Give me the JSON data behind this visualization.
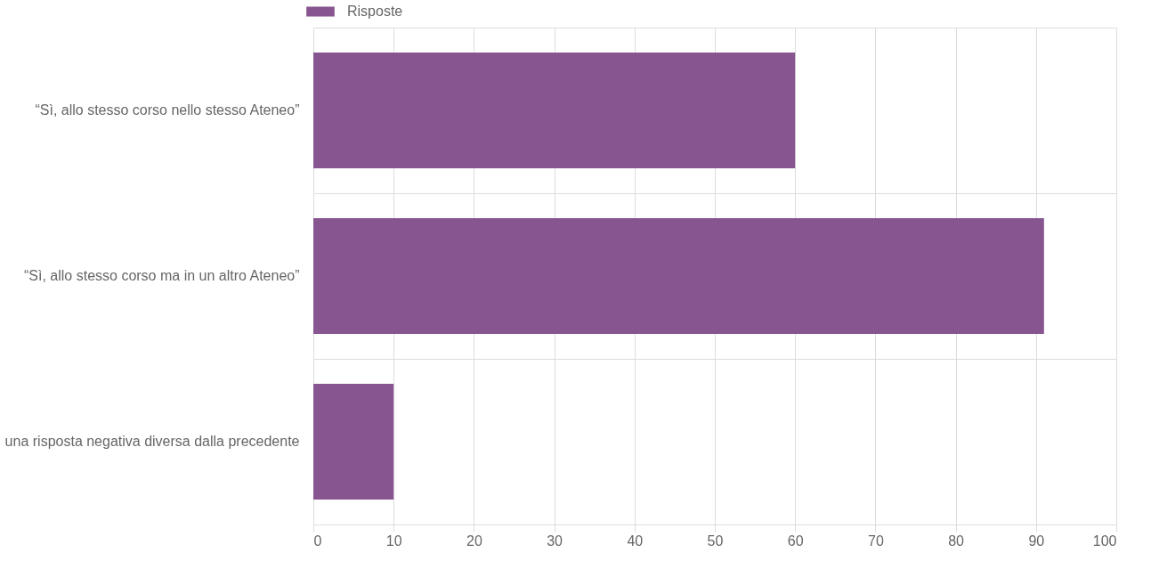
{
  "chart_data": {
    "type": "bar",
    "orientation": "horizontal",
    "categories": [
      "“Sì, allo stesso corso nello stesso Ateneo”",
      "“Sì, allo stesso corso ma in un altro Ateneo”",
      "una risposta negativa diversa dalla precedente"
    ],
    "series": [
      {
        "name": "Risposte",
        "color": "#87558f",
        "values": [
          60,
          91,
          10
        ]
      }
    ],
    "xlim": [
      0,
      100
    ],
    "xticks": [
      0,
      10,
      20,
      30,
      40,
      50,
      60,
      70,
      80,
      90,
      100
    ],
    "grid": true,
    "legend": "top"
  }
}
